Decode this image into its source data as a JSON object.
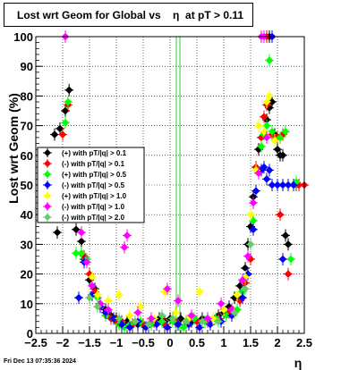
{
  "title": "Lost wrt Geom for Global vs    η  at pT > 0.11",
  "footer": "Fri Dec 13 07:35:36 2024",
  "chart_data": {
    "type": "scatter",
    "title": "Lost wrt Geom for Global vs    η  at pT > 0.11",
    "xlabel": "η",
    "ylabel": "Lost wrt Geom (%)",
    "xlim": [
      -2.5,
      2.5
    ],
    "ylim": [
      0,
      100
    ],
    "xticks": [
      -2.5,
      -2,
      -1.5,
      -1,
      -0.5,
      0,
      0.5,
      1,
      1.5,
      2,
      2.5
    ],
    "xtick_labels": [
      "−2.5",
      "−2",
      "−1.5",
      "−1",
      "−0.5",
      "0",
      "0.5",
      "1",
      "1.5",
      "2",
      "2.5"
    ],
    "yticks": [
      0,
      10,
      20,
      30,
      40,
      50,
      60,
      70,
      80,
      90,
      100
    ],
    "ytick_labels": [
      "0",
      "10",
      "20",
      "30",
      "40",
      "50",
      "60",
      "70",
      "80",
      "90",
      "100"
    ],
    "grid": true,
    "legend_position": "middle-left",
    "vertical_line_x": 0.15,
    "series": [
      {
        "name": "(+) with pT/|q| > 0.1",
        "color": "#000000",
        "points": [
          [
            -2.15,
            67
          ],
          [
            -2.05,
            69
          ],
          [
            -1.95,
            75
          ],
          [
            -1.88,
            82
          ],
          [
            -2.1,
            34
          ],
          [
            -1.85,
            48
          ],
          [
            -1.75,
            35
          ],
          [
            -1.65,
            31
          ],
          [
            -1.6,
            25
          ],
          [
            -1.5,
            18
          ],
          [
            -1.4,
            15
          ],
          [
            -1.3,
            10
          ],
          [
            -1.2,
            8
          ],
          [
            -1.1,
            6
          ],
          [
            -1.0,
            5
          ],
          [
            -0.9,
            4
          ],
          [
            -0.8,
            4
          ],
          [
            -0.7,
            3
          ],
          [
            -0.6,
            3
          ],
          [
            -0.5,
            3
          ],
          [
            -0.4,
            3
          ],
          [
            -0.3,
            4
          ],
          [
            -0.2,
            5
          ],
          [
            -0.1,
            4
          ],
          [
            0.0,
            5
          ],
          [
            0.1,
            4
          ],
          [
            0.2,
            5
          ],
          [
            0.3,
            4
          ],
          [
            0.4,
            4
          ],
          [
            0.5,
            4
          ],
          [
            0.6,
            5
          ],
          [
            0.7,
            5
          ],
          [
            0.8,
            5
          ],
          [
            0.9,
            6
          ],
          [
            1.0,
            7
          ],
          [
            1.1,
            9
          ],
          [
            1.2,
            12
          ],
          [
            1.3,
            16
          ],
          [
            1.4,
            22
          ],
          [
            1.45,
            30
          ],
          [
            1.5,
            36
          ],
          [
            1.55,
            46
          ],
          [
            1.6,
            56
          ],
          [
            1.65,
            62
          ],
          [
            1.7,
            66
          ],
          [
            1.8,
            72
          ],
          [
            1.85,
            76
          ],
          [
            1.9,
            78
          ],
          [
            1.95,
            67
          ],
          [
            2.0,
            62
          ],
          [
            2.05,
            60
          ],
          [
            2.1,
            60
          ],
          [
            2.15,
            33
          ],
          [
            2.2,
            30
          ],
          [
            1.85,
            100
          ]
        ]
      },
      {
        "name": "(-) with pT/|q| > 0.1",
        "color": "#ff0000",
        "points": [
          [
            -2.0,
            67
          ],
          [
            -1.9,
            77
          ],
          [
            -1.6,
            26
          ],
          [
            -1.5,
            20
          ],
          [
            -1.4,
            14
          ],
          [
            -1.3,
            9
          ],
          [
            -1.2,
            6
          ],
          [
            -1.1,
            5
          ],
          [
            -1.0,
            4
          ],
          [
            -0.9,
            4
          ],
          [
            -0.7,
            3
          ],
          [
            -0.5,
            3
          ],
          [
            -0.3,
            4
          ],
          [
            -0.1,
            3
          ],
          [
            0.1,
            4
          ],
          [
            0.3,
            4
          ],
          [
            0.5,
            4
          ],
          [
            0.7,
            4
          ],
          [
            0.9,
            5
          ],
          [
            1.1,
            7
          ],
          [
            1.3,
            11
          ],
          [
            1.4,
            17
          ],
          [
            1.5,
            25
          ],
          [
            1.6,
            56
          ],
          [
            1.7,
            66
          ],
          [
            1.75,
            73
          ],
          [
            1.8,
            77
          ],
          [
            1.9,
            67
          ],
          [
            2.0,
            66
          ],
          [
            2.1,
            67
          ],
          [
            2.2,
            20
          ],
          [
            2.35,
            50
          ],
          [
            2.4,
            50
          ],
          [
            2.5,
            50
          ],
          [
            1.8,
            100
          ],
          [
            2.05,
            40
          ]
        ]
      },
      {
        "name": "(+) with pT/|q| > 0.5",
        "color": "#00ff00",
        "points": [
          [
            -1.95,
            71
          ],
          [
            -1.9,
            78
          ],
          [
            -1.75,
            27
          ],
          [
            -1.65,
            27
          ],
          [
            -1.55,
            25
          ],
          [
            -1.45,
            19
          ],
          [
            -1.35,
            12
          ],
          [
            -1.2,
            6
          ],
          [
            -1.05,
            5
          ],
          [
            -0.95,
            3
          ],
          [
            -0.85,
            2
          ],
          [
            -0.75,
            3
          ],
          [
            -0.55,
            4
          ],
          [
            -0.35,
            3
          ],
          [
            -0.15,
            4
          ],
          [
            0.05,
            4
          ],
          [
            0.25,
            2
          ],
          [
            0.45,
            5
          ],
          [
            0.65,
            4
          ],
          [
            0.85,
            5
          ],
          [
            1.05,
            6
          ],
          [
            1.25,
            8
          ],
          [
            1.35,
            14
          ],
          [
            1.45,
            20
          ],
          [
            1.55,
            38
          ],
          [
            1.65,
            54
          ],
          [
            1.7,
            63
          ],
          [
            1.75,
            67
          ],
          [
            1.8,
            70
          ],
          [
            1.85,
            92
          ],
          [
            1.9,
            68
          ],
          [
            1.95,
            65
          ],
          [
            2.05,
            66
          ],
          [
            2.15,
            68
          ],
          [
            2.25,
            25
          ],
          [
            2.35,
            51
          ]
        ]
      },
      {
        "name": "(-) with pT/|q| > 0.5",
        "color": "#0000ff",
        "points": [
          [
            -1.7,
            12
          ],
          [
            -1.6,
            24
          ],
          [
            -1.45,
            13
          ],
          [
            -1.3,
            9
          ],
          [
            -1.2,
            7
          ],
          [
            -1.05,
            5
          ],
          [
            -0.9,
            3
          ],
          [
            -0.75,
            2
          ],
          [
            -0.6,
            4
          ],
          [
            -0.45,
            2
          ],
          [
            -0.25,
            3
          ],
          [
            -0.05,
            2
          ],
          [
            0.15,
            3
          ],
          [
            0.35,
            3
          ],
          [
            0.55,
            2
          ],
          [
            0.75,
            3
          ],
          [
            0.95,
            4
          ],
          [
            1.15,
            6
          ],
          [
            1.35,
            12
          ],
          [
            1.45,
            20
          ],
          [
            1.55,
            35
          ],
          [
            1.6,
            48
          ],
          [
            1.7,
            55
          ],
          [
            1.75,
            56
          ],
          [
            1.8,
            52
          ],
          [
            1.85,
            55
          ],
          [
            1.9,
            50
          ],
          [
            2.0,
            50
          ],
          [
            2.1,
            50
          ],
          [
            2.2,
            50
          ],
          [
            2.3,
            50
          ],
          [
            2.1,
            25
          ],
          [
            1.9,
            100
          ]
        ]
      },
      {
        "name": "(+) with pT/|q| > 1.0",
        "color": "#ffff00",
        "points": [
          [
            -1.45,
            19
          ],
          [
            -1.35,
            13
          ],
          [
            -1.15,
            11
          ],
          [
            -0.95,
            13
          ],
          [
            -0.75,
            6
          ],
          [
            -0.55,
            9
          ],
          [
            -0.3,
            5
          ],
          [
            -0.1,
            14
          ],
          [
            0.1,
            7
          ],
          [
            0.35,
            5
          ],
          [
            0.55,
            14
          ],
          [
            0.8,
            5
          ],
          [
            1.0,
            8
          ],
          [
            1.25,
            13
          ],
          [
            1.4,
            19
          ],
          [
            1.5,
            40
          ],
          [
            1.6,
            55
          ],
          [
            1.65,
            70
          ],
          [
            1.75,
            68
          ],
          [
            1.8,
            78
          ],
          [
            1.85,
            80
          ],
          [
            1.95,
            65
          ]
        ]
      },
      {
        "name": "(-) with pT/|q| > 1.0",
        "color": "#ff00ff",
        "points": [
          [
            -1.95,
            100
          ],
          [
            -1.65,
            34
          ],
          [
            -1.55,
            24
          ],
          [
            -1.45,
            16
          ],
          [
            -1.3,
            10
          ],
          [
            -1.15,
            8
          ],
          [
            -0.85,
            29
          ],
          [
            -0.8,
            33
          ],
          [
            -0.6,
            7
          ],
          [
            -0.35,
            5
          ],
          [
            -0.05,
            15
          ],
          [
            0.15,
            11
          ],
          [
            0.4,
            6
          ],
          [
            0.7,
            5
          ],
          [
            0.95,
            10
          ],
          [
            1.15,
            8
          ],
          [
            1.35,
            18
          ],
          [
            1.45,
            26
          ],
          [
            1.55,
            44
          ],
          [
            1.65,
            54
          ],
          [
            1.7,
            100
          ],
          [
            1.75,
            100
          ],
          [
            1.8,
            66
          ]
        ]
      },
      {
        "name": "(-) with pT/|q| > 2.0",
        "color": "#66cc66",
        "points": [
          [
            -1.5,
            12
          ],
          [
            -1.35,
            9
          ],
          [
            -0.95,
            5
          ],
          [
            -0.65,
            4
          ],
          [
            -0.4,
            3
          ],
          [
            -0.15,
            6
          ],
          [
            0.05,
            5
          ],
          [
            0.3,
            4
          ],
          [
            0.6,
            4
          ],
          [
            0.9,
            4
          ],
          [
            1.2,
            7
          ],
          [
            1.4,
            15
          ],
          [
            1.5,
            30
          ]
        ]
      }
    ]
  }
}
